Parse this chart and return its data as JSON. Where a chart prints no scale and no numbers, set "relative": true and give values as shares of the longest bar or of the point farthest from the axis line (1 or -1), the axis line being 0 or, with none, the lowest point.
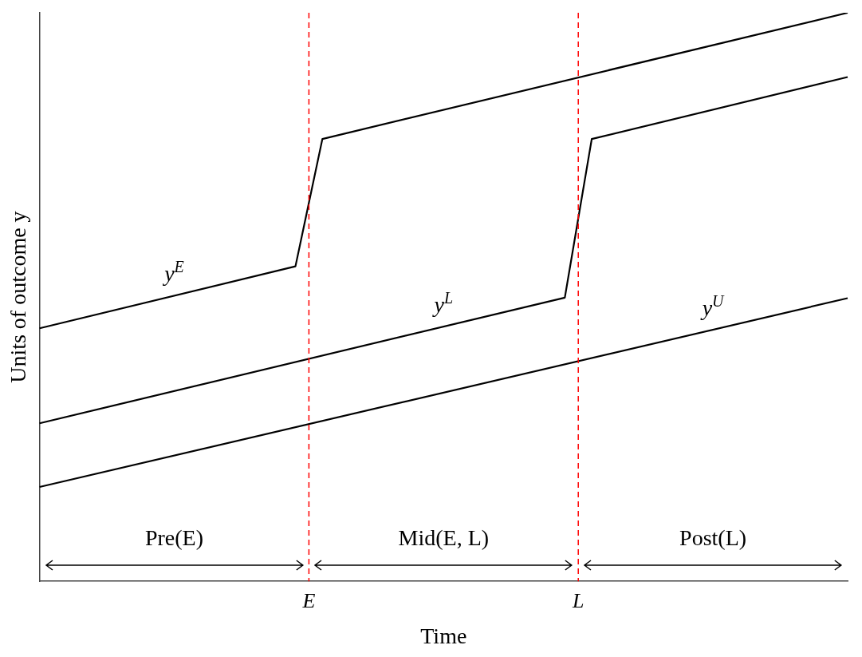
{
  "chart_data": {
    "type": "line",
    "relative": true,
    "ylabel": "Units of outcome y",
    "xlabel": "Time",
    "legend": false,
    "line_style": "solid",
    "categories": [
      null,
      null,
      null,
      null,
      null,
      null,
      null,
      null,
      null,
      null,
      null,
      null,
      null,
      null,
      null,
      null,
      null,
      null,
      null,
      null,
      "E",
      null,
      null,
      null,
      null,
      null,
      null,
      null,
      null,
      null,
      null,
      null,
      null,
      null,
      null,
      null,
      null,
      null,
      null,
      null,
      "L",
      null,
      null,
      null,
      null,
      null,
      null,
      null,
      null,
      null,
      null,
      null,
      null,
      null,
      null,
      null,
      null,
      null,
      null,
      null,
      null
    ],
    "series": [
      {
        "name": "y$^{E}$",
        "color": "#000000",
        "values": [
          0.445,
          null,
          null,
          null,
          null,
          null,
          null,
          null,
          null,
          null,
          null,
          null,
          null,
          null,
          null,
          null,
          null,
          null,
          null,
          0.554,
          null,
          0.778,
          null,
          null,
          null,
          null,
          null,
          null,
          null,
          null,
          null,
          null,
          null,
          null,
          null,
          null,
          null,
          null,
          null,
          null,
          null,
          null,
          null,
          null,
          null,
          null,
          null,
          null,
          null,
          null,
          null,
          null,
          null,
          null,
          null,
          null,
          null,
          null,
          null,
          null,
          1
        ]
      },
      {
        "name": "y$^{L}$",
        "color": "#000000",
        "values": [
          0.278,
          null,
          null,
          null,
          null,
          null,
          null,
          null,
          null,
          null,
          null,
          null,
          null,
          null,
          null,
          null,
          null,
          null,
          null,
          null,
          null,
          null,
          null,
          null,
          null,
          null,
          null,
          null,
          null,
          null,
          null,
          null,
          null,
          null,
          null,
          null,
          null,
          null,
          null,
          0.499,
          null,
          0.778,
          null,
          null,
          null,
          null,
          null,
          null,
          null,
          null,
          null,
          null,
          null,
          null,
          null,
          null,
          null,
          null,
          null,
          null,
          0.887
        ]
      },
      {
        "name": "y$^{U}$",
        "color": "#000000",
        "values": [
          0.166,
          null,
          null,
          null,
          null,
          null,
          null,
          null,
          null,
          null,
          null,
          null,
          null,
          null,
          null,
          null,
          null,
          null,
          null,
          null,
          null,
          null,
          null,
          null,
          null,
          null,
          null,
          null,
          null,
          null,
          null,
          null,
          null,
          null,
          null,
          null,
          null,
          null,
          null,
          null,
          null,
          null,
          null,
          null,
          null,
          null,
          null,
          null,
          null,
          null,
          null,
          null,
          null,
          null,
          null,
          null,
          null,
          null,
          null,
          null,
          0.498
        ]
      }
    ],
    "ref_lines": [
      {
        "axis": "x",
        "value": "E",
        "color": "#ff0000",
        "line_style": "dashed"
      },
      {
        "axis": "x",
        "value": "L",
        "color": "#ff0000",
        "line_style": "dashed"
      }
    ],
    "annotations": [
      "Pre(E)",
      "Mid(E, L)",
      "Post(L)"
    ]
  }
}
